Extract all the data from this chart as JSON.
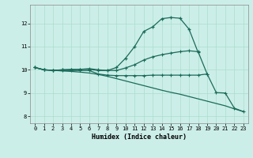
{
  "xlabel": "Humidex (Indice chaleur)",
  "bg_color": "#cceee8",
  "line_color": "#1a6b5a",
  "grid_color": "#aaddcc",
  "xlim": [
    -0.5,
    23.5
  ],
  "ylim": [
    7.7,
    12.8
  ],
  "xticks": [
    0,
    1,
    2,
    3,
    4,
    5,
    6,
    7,
    8,
    9,
    10,
    11,
    12,
    13,
    14,
    15,
    16,
    17,
    18,
    19,
    20,
    21,
    22,
    23
  ],
  "yticks": [
    8,
    9,
    10,
    11,
    12
  ],
  "line1_x": [
    0,
    1,
    2,
    3,
    4,
    5,
    6,
    7,
    8,
    9,
    10,
    11,
    12,
    13,
    14,
    15,
    16,
    17,
    18
  ],
  "line1_y": [
    10.1,
    10.0,
    9.97,
    10.0,
    10.0,
    10.02,
    10.02,
    9.97,
    9.97,
    10.1,
    10.5,
    11.0,
    11.65,
    11.85,
    12.2,
    12.25,
    12.22,
    11.75,
    10.75
  ],
  "line2_x": [
    0,
    1,
    2,
    3,
    4,
    5,
    6,
    7,
    8,
    9,
    10,
    11,
    12,
    13,
    14,
    15,
    16,
    17,
    18,
    19
  ],
  "line2_y": [
    10.1,
    10.0,
    9.98,
    10.0,
    10.02,
    10.02,
    10.05,
    10.0,
    9.97,
    9.97,
    10.08,
    10.22,
    10.42,
    10.56,
    10.65,
    10.72,
    10.78,
    10.82,
    10.78,
    9.82
  ],
  "line3_x": [
    0,
    1,
    2,
    3,
    4,
    5,
    6,
    7,
    8,
    9,
    10,
    11,
    12,
    13,
    14,
    15,
    16,
    17,
    18,
    19,
    20,
    21,
    22,
    23
  ],
  "line3_y": [
    10.1,
    10.0,
    9.98,
    9.95,
    9.93,
    9.9,
    9.86,
    9.8,
    9.72,
    9.62,
    9.52,
    9.42,
    9.32,
    9.22,
    9.12,
    9.03,
    8.95,
    8.85,
    8.75,
    8.65,
    8.55,
    8.45,
    8.32,
    8.2
  ],
  "line4_x": [
    0,
    1,
    2,
    3,
    4,
    5,
    6,
    7,
    8,
    9,
    10,
    11,
    12,
    13,
    14,
    15,
    16,
    17,
    18,
    19,
    20,
    21,
    22,
    23
  ],
  "line4_y": [
    10.1,
    10.0,
    9.98,
    9.97,
    9.97,
    9.97,
    9.97,
    9.82,
    9.77,
    9.75,
    9.75,
    9.75,
    9.75,
    9.77,
    9.77,
    9.77,
    9.77,
    9.77,
    9.77,
    9.82,
    9.02,
    9.0,
    8.35,
    8.2
  ]
}
